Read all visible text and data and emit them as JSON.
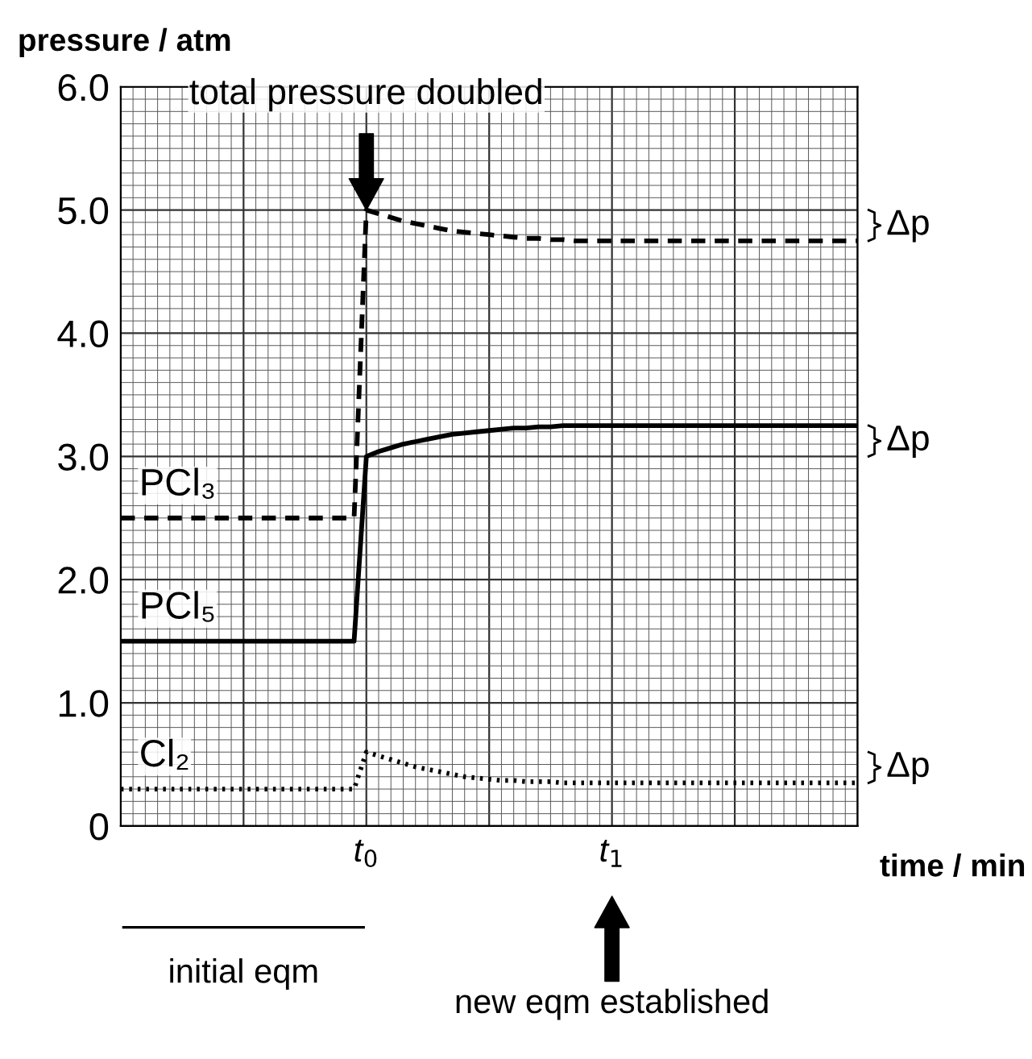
{
  "chart_data": {
    "type": "line",
    "xlabel": "time / min",
    "ylabel": "pressure / atm",
    "categories": [
      null,
      null,
      null,
      null,
      null,
      null,
      null,
      null,
      null,
      null,
      null,
      null,
      null,
      null,
      null,
      null,
      null,
      null,
      null,
      null,
      "t$_{0}$",
      null,
      null,
      null,
      null,
      null,
      null,
      null,
      null,
      null,
      null,
      null,
      null,
      null,
      null,
      null,
      null,
      null,
      null,
      null,
      "t$_{1}$",
      null,
      null,
      null,
      null,
      null,
      null,
      null,
      null,
      null,
      null,
      null,
      null,
      null,
      null,
      null,
      null,
      null,
      null,
      null,
      null
    ],
    "ylim": [
      0,
      6
    ],
    "yticks": [
      0,
      {
        "value": 1,
        "label": "1.0"
      },
      {
        "value": 2,
        "label": "2.0"
      },
      {
        "value": 3,
        "label": "3.0"
      },
      {
        "value": 4,
        "label": "4.0"
      },
      {
        "value": 5,
        "label": "5.0"
      },
      {
        "value": 6,
        "label": "6.0"
      }
    ],
    "grid": true,
    "series": [
      {
        "name": "PCl₃",
        "color": "#000000",
        "line_style": "dashed",
        "values": [
          2.5,
          2.5,
          2.5,
          2.5,
          2.5,
          2.5,
          2.5,
          2.5,
          2.5,
          2.5,
          2.5,
          2.5,
          2.5,
          2.5,
          2.5,
          2.5,
          2.5,
          2.5,
          2.5,
          2.5,
          5.0,
          4.97,
          4.94,
          4.91,
          4.89,
          4.87,
          4.85,
          4.83,
          4.82,
          4.81,
          4.8,
          4.79,
          4.78,
          4.77,
          4.77,
          4.76,
          4.76,
          4.75,
          4.75,
          4.75,
          4.75,
          4.75,
          4.75,
          4.75,
          4.75,
          4.75,
          4.75,
          4.75,
          4.75,
          4.75,
          4.75,
          4.75,
          4.75,
          4.75,
          4.75,
          4.75,
          4.75,
          4.75,
          4.75,
          4.75,
          4.75
        ]
      },
      {
        "name": "PCl₅",
        "color": "#000000",
        "line_style": "solid",
        "values": [
          1.5,
          1.5,
          1.5,
          1.5,
          1.5,
          1.5,
          1.5,
          1.5,
          1.5,
          1.5,
          1.5,
          1.5,
          1.5,
          1.5,
          1.5,
          1.5,
          1.5,
          1.5,
          1.5,
          1.5,
          3.0,
          3.04,
          3.07,
          3.1,
          3.12,
          3.14,
          3.16,
          3.18,
          3.19,
          3.2,
          3.21,
          3.22,
          3.23,
          3.23,
          3.24,
          3.24,
          3.25,
          3.25,
          3.25,
          3.25,
          3.25,
          3.25,
          3.25,
          3.25,
          3.25,
          3.25,
          3.25,
          3.25,
          3.25,
          3.25,
          3.25,
          3.25,
          3.25,
          3.25,
          3.25,
          3.25,
          3.25,
          3.25,
          3.25,
          3.25,
          3.25
        ]
      },
      {
        "name": "Cl₂",
        "color": "#000000",
        "line_style": "dotted",
        "values": [
          0.3,
          0.3,
          0.3,
          0.3,
          0.3,
          0.3,
          0.3,
          0.3,
          0.3,
          0.3,
          0.3,
          0.3,
          0.3,
          0.3,
          0.3,
          0.3,
          0.3,
          0.3,
          0.3,
          0.3,
          0.6,
          0.57,
          0.54,
          0.51,
          0.48,
          0.46,
          0.44,
          0.42,
          0.4,
          0.39,
          0.38,
          0.37,
          0.37,
          0.36,
          0.36,
          0.36,
          0.35,
          0.35,
          0.35,
          0.35,
          0.35,
          0.35,
          0.35,
          0.35,
          0.35,
          0.35,
          0.35,
          0.35,
          0.35,
          0.35,
          0.35,
          0.35,
          0.35,
          0.35,
          0.35,
          0.35,
          0.35,
          0.35,
          0.35,
          0.35,
          0.35
        ]
      }
    ],
    "annotations": [
      {
        "text": "total pressure doubled",
        "x": "t$_{0}$",
        "y": 5.0
      },
      "initial eqm",
      "new eqm established",
      "Δp",
      "Δp",
      "Δp"
    ]
  }
}
